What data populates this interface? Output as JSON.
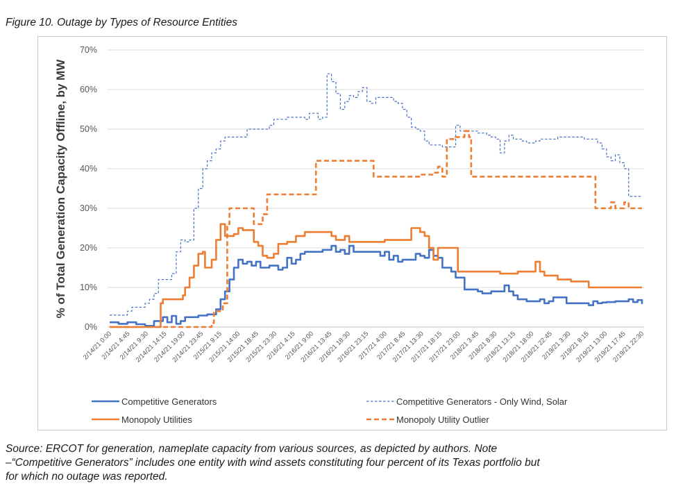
{
  "figure": {
    "title": "Figure 10.  Outage by Types of Resource Entities",
    "source_lines": [
      "Source: ERCOT for generation, nameplate capacity from various sources, as depicted by authors.  Note",
      "–“Competitive Generators” includes one entity with wind assets constituting four percent of its Texas portfolio but",
      "for which no outage was reported."
    ]
  },
  "chart_data": {
    "type": "line",
    "title": "",
    "xlabel": "",
    "ylabel": "% of Total Generation Capacity Offline, by MW",
    "ylim": [
      0,
      70
    ],
    "ytick_labels": [
      "0%",
      "10%",
      "20%",
      "30%",
      "40%",
      "50%",
      "60%",
      "70%"
    ],
    "y_unit": "percent",
    "x_tick_labels": [
      "2/14/21 0:00",
      "2/14/21 4:45",
      "2/14/21 9:30",
      "2/14/21 14:15",
      "2/14/21 19:00",
      "2/14/21 23:45",
      "2/15/21 9:15",
      "2/15/21 14:00",
      "2/15/21 18:45",
      "2/15/21 23:30",
      "2/16/21 4:15",
      "2/16/21 9:00",
      "2/16/21 13:45",
      "2/16/21 18:30",
      "2/16/21 23:15",
      "2/17/21 4:00",
      "2/17/21 8:45",
      "2/17/21 13:30",
      "2/17/21 18:15",
      "2/17/21 23:00",
      "2/18/21 3:45",
      "2/18/21 8:30",
      "2/18/21 13:15",
      "2/18/21 18:00",
      "2/18/21 22:45",
      "2/19/21 3:30",
      "2/19/21 8:15",
      "2/19/21 13:00",
      "2/19/21 17:45",
      "2/19/21 22:30"
    ],
    "x_range_hours": [
      0,
      144
    ],
    "grid": "horizontal",
    "legend_position": "bottom",
    "series": [
      {
        "name": "Competitive Generators",
        "color": "#4472c4",
        "style": "solid",
        "points": [
          [
            0,
            1.2
          ],
          [
            2,
            0.8
          ],
          [
            4,
            1.2
          ],
          [
            6,
            0.7
          ],
          [
            8,
            0.3
          ],
          [
            10,
            1.5
          ],
          [
            12,
            2.5
          ],
          [
            13,
            1.2
          ],
          [
            14,
            2.8
          ],
          [
            15,
            0.8
          ],
          [
            16,
            1.5
          ],
          [
            17,
            2.5
          ],
          [
            19,
            2.5
          ],
          [
            20,
            2.9
          ],
          [
            22,
            3.2
          ],
          [
            24,
            4.5
          ],
          [
            25,
            7
          ],
          [
            26,
            9
          ],
          [
            27,
            12
          ],
          [
            28,
            15
          ],
          [
            29,
            17
          ],
          [
            30,
            16
          ],
          [
            31,
            16.5
          ],
          [
            32,
            15.5
          ],
          [
            33,
            16.5
          ],
          [
            34,
            15
          ],
          [
            36,
            15.5
          ],
          [
            38,
            14.5
          ],
          [
            39,
            15
          ],
          [
            40,
            17.5
          ],
          [
            41,
            16
          ],
          [
            42,
            17
          ],
          [
            43,
            18.5
          ],
          [
            44,
            19
          ],
          [
            46,
            19
          ],
          [
            48,
            19.5
          ],
          [
            50,
            20.5
          ],
          [
            51,
            19
          ],
          [
            52,
            19.5
          ],
          [
            53,
            18.5
          ],
          [
            54,
            20.5
          ],
          [
            55,
            19
          ],
          [
            56,
            19
          ],
          [
            58,
            19
          ],
          [
            60,
            19
          ],
          [
            61,
            18
          ],
          [
            62,
            19
          ],
          [
            63,
            17
          ],
          [
            64,
            18
          ],
          [
            65,
            16.5
          ],
          [
            66,
            17
          ],
          [
            68,
            17
          ],
          [
            69,
            18.5
          ],
          [
            70,
            18
          ],
          [
            71,
            17.5
          ],
          [
            72,
            19.5
          ],
          [
            73,
            18
          ],
          [
            74,
            17.5
          ],
          [
            75,
            15
          ],
          [
            76,
            15
          ],
          [
            77,
            14
          ],
          [
            78,
            12.5
          ],
          [
            80,
            9.5
          ],
          [
            82,
            9.5
          ],
          [
            83,
            9
          ],
          [
            84,
            8.5
          ],
          [
            86,
            9
          ],
          [
            88,
            9
          ],
          [
            89,
            10.5
          ],
          [
            90,
            9
          ],
          [
            91,
            8
          ],
          [
            92,
            7
          ],
          [
            94,
            6.5
          ],
          [
            96,
            6.5
          ],
          [
            97,
            7
          ],
          [
            98,
            6
          ],
          [
            99,
            6.5
          ],
          [
            100,
            7.5
          ],
          [
            102,
            7.5
          ],
          [
            103,
            6
          ],
          [
            105,
            6
          ],
          [
            106,
            6
          ],
          [
            108,
            5.5
          ],
          [
            109,
            6.5
          ],
          [
            110,
            6
          ],
          [
            111,
            6.2
          ],
          [
            112,
            6.3
          ],
          [
            114,
            6.5
          ],
          [
            116,
            6.5
          ],
          [
            117,
            7
          ],
          [
            118,
            6.3
          ],
          [
            119,
            6.8
          ],
          [
            120,
            5.8
          ]
        ]
      },
      {
        "name": "Competitive Generators - Only Wind, Solar",
        "color": "#4472c4",
        "style": "dashed-thin",
        "points": [
          [
            0,
            3
          ],
          [
            3,
            3
          ],
          [
            4,
            4
          ],
          [
            5,
            5
          ],
          [
            7,
            5
          ],
          [
            8,
            6
          ],
          [
            9,
            7
          ],
          [
            10,
            8.5
          ],
          [
            11,
            12
          ],
          [
            13,
            12
          ],
          [
            14,
            13.5
          ],
          [
            15,
            19
          ],
          [
            16,
            22
          ],
          [
            17,
            21.5
          ],
          [
            18,
            22
          ],
          [
            19,
            30
          ],
          [
            20,
            35
          ],
          [
            21,
            40
          ],
          [
            22,
            42
          ],
          [
            23,
            44
          ],
          [
            24,
            45
          ],
          [
            25,
            47
          ],
          [
            26,
            48
          ],
          [
            30,
            48
          ],
          [
            31,
            50
          ],
          [
            35,
            50
          ],
          [
            36,
            51
          ],
          [
            37,
            52.5
          ],
          [
            39,
            52.5
          ],
          [
            40,
            53
          ],
          [
            43,
            53
          ],
          [
            44,
            52.5
          ],
          [
            45,
            54
          ],
          [
            46,
            54
          ],
          [
            47,
            52.5
          ],
          [
            48,
            53
          ],
          [
            49,
            64
          ],
          [
            50,
            62
          ],
          [
            51,
            59
          ],
          [
            52,
            55
          ],
          [
            53,
            57
          ],
          [
            54,
            58.5
          ],
          [
            55,
            58
          ],
          [
            56,
            59.5
          ],
          [
            57,
            60.5
          ],
          [
            58,
            57
          ],
          [
            59,
            56.5
          ],
          [
            60,
            58
          ],
          [
            63,
            58
          ],
          [
            64,
            57
          ],
          [
            65,
            56.5
          ],
          [
            66,
            55
          ],
          [
            67,
            53
          ],
          [
            68,
            50.5
          ],
          [
            69,
            50
          ],
          [
            70,
            49.5
          ],
          [
            71,
            47
          ],
          [
            72,
            46
          ],
          [
            74,
            46
          ],
          [
            75,
            45.5
          ],
          [
            77,
            45.5
          ],
          [
            78,
            51
          ],
          [
            79,
            49.5
          ],
          [
            82,
            49.5
          ],
          [
            83,
            49
          ],
          [
            85,
            48.5
          ],
          [
            86,
            48
          ],
          [
            87,
            47.5
          ],
          [
            88,
            44
          ],
          [
            89,
            47
          ],
          [
            90,
            48.5
          ],
          [
            91,
            47.5
          ],
          [
            93,
            47
          ],
          [
            94,
            46.5
          ],
          [
            96,
            47
          ],
          [
            97,
            47.5
          ],
          [
            100,
            47.5
          ],
          [
            101,
            48
          ],
          [
            106,
            48
          ],
          [
            107,
            47.5
          ],
          [
            109,
            47.5
          ],
          [
            110,
            46.5
          ],
          [
            111,
            45
          ],
          [
            112,
            43
          ],
          [
            113,
            42
          ],
          [
            114,
            43.5
          ],
          [
            115,
            41.5
          ],
          [
            116,
            40
          ],
          [
            117,
            33
          ],
          [
            120,
            33
          ]
        ]
      },
      {
        "name": "Monopoly Utilities",
        "color": "#ed7d31",
        "style": "solid",
        "points": [
          [
            0,
            0
          ],
          [
            11,
            0
          ],
          [
            11.5,
            6
          ],
          [
            12,
            7
          ],
          [
            16,
            7
          ],
          [
            16.5,
            8
          ],
          [
            17,
            10
          ],
          [
            18,
            12.5
          ],
          [
            19,
            15.5
          ],
          [
            20,
            18.5
          ],
          [
            21,
            19
          ],
          [
            21.5,
            15
          ],
          [
            22,
            15
          ],
          [
            23,
            17
          ],
          [
            24,
            22
          ],
          [
            25,
            26
          ],
          [
            26,
            23
          ],
          [
            28,
            23.5
          ],
          [
            29,
            25
          ],
          [
            30,
            24.5
          ],
          [
            32,
            24.5
          ],
          [
            32.5,
            21.5
          ],
          [
            33.5,
            20.5
          ],
          [
            34.5,
            18
          ],
          [
            35.5,
            17.5
          ],
          [
            37,
            18.5
          ],
          [
            38,
            21
          ],
          [
            40,
            21.5
          ],
          [
            42,
            23
          ],
          [
            44,
            24
          ],
          [
            49,
            24
          ],
          [
            50,
            23
          ],
          [
            51,
            22
          ],
          [
            53,
            23
          ],
          [
            54,
            21.5
          ],
          [
            58,
            21.5
          ],
          [
            62,
            22
          ],
          [
            67,
            22
          ],
          [
            68,
            25
          ],
          [
            69,
            25
          ],
          [
            70,
            24
          ],
          [
            71,
            23
          ],
          [
            72,
            20
          ],
          [
            73,
            17
          ],
          [
            74,
            20
          ],
          [
            78,
            20
          ],
          [
            78.5,
            14
          ],
          [
            87,
            14
          ],
          [
            88,
            13.5
          ],
          [
            91,
            13.5
          ],
          [
            92,
            14
          ],
          [
            95,
            14
          ],
          [
            96,
            16.5
          ],
          [
            97,
            14
          ],
          [
            98,
            13
          ],
          [
            100,
            13
          ],
          [
            101,
            12
          ],
          [
            103,
            12
          ],
          [
            104,
            11.5
          ],
          [
            107,
            11.5
          ],
          [
            108,
            10
          ],
          [
            120,
            10
          ]
        ]
      },
      {
        "name": "Monopoly Utility Outlier",
        "color": "#ed7d31",
        "style": "dashed-thick",
        "points": [
          [
            0,
            0
          ],
          [
            22,
            0
          ],
          [
            23,
            1
          ],
          [
            23.5,
            4
          ],
          [
            25,
            4
          ],
          [
            25.5,
            6
          ],
          [
            26,
            6
          ],
          [
            26.5,
            26
          ],
          [
            27,
            30
          ],
          [
            32,
            30
          ],
          [
            32.5,
            26
          ],
          [
            34,
            26
          ],
          [
            34.5,
            28.5
          ],
          [
            35.5,
            33.5
          ],
          [
            46,
            33.5
          ],
          [
            46.5,
            42
          ],
          [
            59,
            42
          ],
          [
            59.5,
            38
          ],
          [
            70,
            38.5
          ],
          [
            73,
            39
          ],
          [
            74,
            40.5
          ],
          [
            75,
            38
          ],
          [
            76,
            47.5
          ],
          [
            78,
            48
          ],
          [
            80,
            49.5
          ],
          [
            81,
            48
          ],
          [
            81.5,
            38
          ],
          [
            109,
            38
          ],
          [
            109.5,
            30
          ],
          [
            112,
            30
          ],
          [
            113,
            31.5
          ],
          [
            114,
            30
          ],
          [
            116,
            31.5
          ],
          [
            117,
            30
          ],
          [
            120,
            30
          ]
        ]
      }
    ]
  }
}
